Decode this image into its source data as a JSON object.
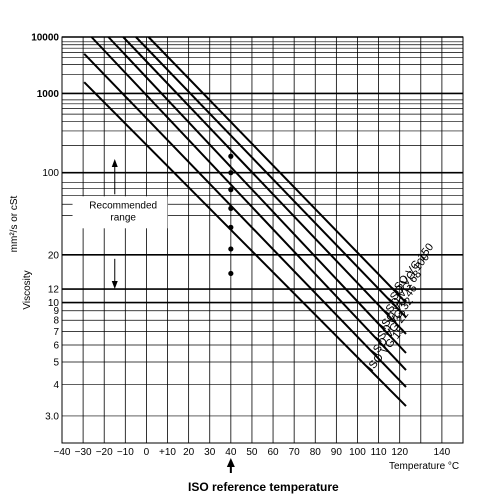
{
  "chart_data": {
    "type": "line",
    "xlabel": "Temperature °C",
    "ylabel_top": "mm²/s or cSt",
    "ylabel_main": "Viscosity",
    "x_range": [
      -40,
      150
    ],
    "x_scale": "linear",
    "x_ticks": [
      -40,
      -30,
      -20,
      -10,
      0,
      10,
      20,
      30,
      40,
      50,
      60,
      70,
      80,
      90,
      100,
      110,
      120,
      140
    ],
    "x_tick_labels": [
      "−40",
      "−30",
      "−20",
      "−10",
      "0",
      "+10",
      "20",
      "30",
      "40",
      "50",
      "60",
      "70",
      "80",
      "90",
      "100",
      "110",
      "120",
      "140"
    ],
    "y_range": [
      2.4,
      10000
    ],
    "y_scale": "log-log (Walther)",
    "y_ticks": [
      3,
      4,
      5,
      6,
      7,
      8,
      9,
      10,
      12,
      20,
      100,
      1000,
      10000
    ],
    "y_tick_labels": [
      "3.0",
      "4",
      "5",
      "6",
      "7",
      "8",
      "9",
      "10",
      "12",
      "20",
      "100",
      "1000",
      "10000"
    ],
    "y_minor_gridlines": [
      40,
      50,
      60,
      70,
      80,
      200,
      300,
      400,
      500,
      600,
      700,
      800,
      2000,
      3000,
      4000,
      5000,
      6000,
      7000,
      8000
    ],
    "grid": true,
    "series": [
      {
        "name": "ISO VG 15",
        "reference_temp": 40,
        "reference_viscosity": 15,
        "x": [
          -29.5,
          123
        ],
        "y": [
          1500,
          3.27
        ]
      },
      {
        "name": "ISO VG 22",
        "reference_temp": 40,
        "reference_viscosity": 22,
        "x": [
          -29.5,
          123
        ],
        "y": [
          4700,
          3.9
        ]
      },
      {
        "name": "ISO VG 32",
        "reference_temp": 40,
        "reference_viscosity": 32,
        "x": [
          -26,
          123
        ],
        "y": [
          10000,
          4.6
        ]
      },
      {
        "name": "ISO VG 46",
        "reference_temp": 40,
        "reference_viscosity": 46,
        "x": [
          -18,
          123
        ],
        "y": [
          10000,
          5.5
        ]
      },
      {
        "name": "ISO VG 68",
        "reference_temp": 40,
        "reference_viscosity": 68,
        "x": [
          -11,
          123
        ],
        "y": [
          10000,
          6.8
        ]
      },
      {
        "name": "ISO VG 100",
        "reference_temp": 40,
        "reference_viscosity": 100,
        "x": [
          -5,
          123
        ],
        "y": [
          10000,
          8.3
        ]
      },
      {
        "name": "ISO VG 150",
        "reference_temp": 40,
        "reference_viscosity": 150,
        "x": [
          1,
          123
        ],
        "y": [
          10000,
          10.0
        ]
      }
    ],
    "reference_points": {
      "x": 40,
      "y": [
        15,
        22,
        32,
        46,
        68,
        100,
        150
      ]
    },
    "recommended_range": {
      "label": "Recommended\nrange",
      "from": 12,
      "to": 140
    },
    "annotation": "ISO reference temperature",
    "annotation_x": 40
  }
}
